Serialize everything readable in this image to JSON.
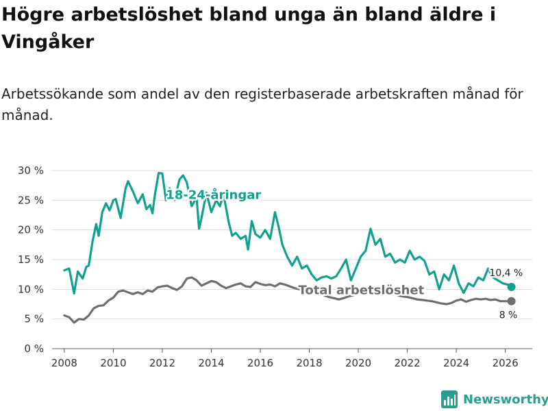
{
  "header": {
    "title": "Högre arbetslöshet bland unga än bland äldre i Vingåker",
    "subtitle": "Arbetssökande som andel av den registerbaserade arbetskraften månad för månad."
  },
  "brand": {
    "name": "Newsworthy",
    "icon": "newsworthy-logo-icon"
  },
  "colors": {
    "youth": "#12a08f",
    "total": "#6e6e6e",
    "grid": "#d9d9d9",
    "axis": "#555555"
  },
  "chart_data": {
    "type": "line",
    "title": "Högre arbetslöshet bland unga än bland äldre i Vingåker",
    "subtitle": "Arbetssökande som andel av den registerbaserade arbetskraften månad för månad.",
    "xlabel": "",
    "ylabel": "",
    "xlim": [
      2007.5,
      2027.1
    ],
    "ylim": [
      0,
      30
    ],
    "grid": true,
    "yticks": [
      0,
      5,
      10,
      15,
      20,
      25,
      30
    ],
    "ytick_labels": [
      "0 %",
      "5 %",
      "10 %",
      "15 %",
      "20 %",
      "25 %",
      "30 %"
    ],
    "xticks": [
      2008,
      2010,
      2012,
      2014,
      2016,
      2018,
      2020,
      2022,
      2024,
      2026
    ],
    "xtick_labels": [
      "2008",
      "2010",
      "2012",
      "2014",
      "2016",
      "2018",
      "2020",
      "2022",
      "2024",
      "2026"
    ],
    "series": [
      {
        "name": "18-24-åringar",
        "label": "18-24-åringar",
        "color": "#12a08f",
        "end_label": "10,4 %",
        "x": [
          2008.0,
          2008.2,
          2008.4,
          2008.55,
          2008.75,
          2008.9,
          2009.0,
          2009.15,
          2009.3,
          2009.4,
          2009.55,
          2009.7,
          2009.85,
          2010.0,
          2010.1,
          2010.3,
          2010.5,
          2010.6,
          2010.8,
          2011.0,
          2011.2,
          2011.35,
          2011.5,
          2011.6,
          2011.7,
          2011.85,
          2012.0,
          2012.15,
          2012.3,
          2012.5,
          2012.7,
          2012.85,
          2013.0,
          2013.2,
          2013.4,
          2013.5,
          2013.6,
          2013.8,
          2014.0,
          2014.2,
          2014.35,
          2014.5,
          2014.7,
          2014.85,
          2015.0,
          2015.2,
          2015.4,
          2015.5,
          2015.65,
          2015.8,
          2016.0,
          2016.2,
          2016.4,
          2016.6,
          2016.75,
          2016.9,
          2017.1,
          2017.3,
          2017.5,
          2017.7,
          2017.9,
          2018.1,
          2018.3,
          2018.5,
          2018.7,
          2018.9,
          2019.1,
          2019.3,
          2019.5,
          2019.7,
          2019.9,
          2020.1,
          2020.3,
          2020.5,
          2020.7,
          2020.9,
          2021.1,
          2021.3,
          2021.5,
          2021.7,
          2021.9,
          2022.1,
          2022.3,
          2022.5,
          2022.7,
          2022.9,
          2023.1,
          2023.3,
          2023.5,
          2023.7,
          2023.9,
          2024.1,
          2024.3,
          2024.5,
          2024.7,
          2024.9,
          2025.1,
          2025.3,
          2025.5,
          2025.7,
          2025.9,
          2026.1,
          2026.25
        ],
        "values": [
          13.2,
          13.5,
          9.3,
          13.0,
          11.8,
          13.8,
          14.0,
          18.0,
          21.0,
          19.0,
          23.0,
          24.5,
          23.3,
          25.0,
          25.2,
          22.0,
          27.0,
          28.2,
          26.5,
          24.5,
          26.0,
          23.5,
          24.2,
          22.8,
          26.0,
          29.6,
          29.5,
          25.0,
          27.0,
          25.0,
          28.5,
          29.2,
          28.0,
          24.0,
          25.5,
          20.2,
          22.0,
          26.3,
          23.0,
          25.0,
          24.0,
          26.0,
          21.5,
          19.0,
          19.5,
          18.5,
          19.0,
          16.7,
          21.5,
          19.3,
          18.7,
          20.0,
          18.5,
          23.0,
          20.5,
          17.5,
          15.5,
          14.0,
          15.5,
          13.5,
          14.0,
          12.5,
          11.5,
          12.0,
          12.2,
          11.8,
          12.2,
          13.5,
          15.0,
          11.5,
          13.5,
          15.5,
          16.5,
          20.2,
          17.5,
          18.5,
          15.5,
          16.0,
          14.5,
          15.0,
          14.5,
          16.5,
          15.0,
          15.5,
          14.8,
          12.5,
          13.0,
          10.0,
          12.5,
          11.5,
          14.0,
          11.0,
          9.4,
          11.0,
          10.5,
          12.0,
          11.5,
          13.5,
          12.0,
          11.5,
          11.0,
          10.8,
          10.4
        ]
      },
      {
        "name": "Total arbetslöshet",
        "label": "Total arbetslöshet",
        "color": "#6e6e6e",
        "end_label": "8 %",
        "x": [
          2008.0,
          2008.2,
          2008.4,
          2008.6,
          2008.8,
          2009.0,
          2009.2,
          2009.4,
          2009.6,
          2009.8,
          2010.0,
          2010.2,
          2010.4,
          2010.6,
          2010.8,
          2011.0,
          2011.2,
          2011.4,
          2011.6,
          2011.8,
          2012.0,
          2012.2,
          2012.4,
          2012.6,
          2012.8,
          2013.0,
          2013.2,
          2013.4,
          2013.6,
          2013.8,
          2014.0,
          2014.2,
          2014.4,
          2014.6,
          2014.8,
          2015.0,
          2015.2,
          2015.4,
          2015.6,
          2015.8,
          2016.0,
          2016.2,
          2016.4,
          2016.6,
          2016.8,
          2017.0,
          2017.2,
          2017.4,
          2017.6,
          2017.8,
          2018.0,
          2018.2,
          2018.4,
          2018.6,
          2018.8,
          2019.0,
          2019.2,
          2019.4,
          2019.6,
          2019.8,
          2020.0,
          2020.2,
          2020.4,
          2020.6,
          2020.8,
          2021.0,
          2021.2,
          2021.4,
          2021.6,
          2021.8,
          2022.0,
          2022.2,
          2022.4,
          2022.6,
          2022.8,
          2023.0,
          2023.2,
          2023.4,
          2023.6,
          2023.8,
          2024.0,
          2024.2,
          2024.4,
          2024.6,
          2024.8,
          2025.0,
          2025.2,
          2025.4,
          2025.6,
          2025.8,
          2026.0,
          2026.25
        ],
        "values": [
          5.6,
          5.3,
          4.4,
          5.0,
          4.9,
          5.6,
          6.8,
          7.2,
          7.3,
          8.1,
          8.6,
          9.6,
          9.8,
          9.5,
          9.2,
          9.5,
          9.2,
          9.8,
          9.6,
          10.3,
          10.5,
          10.6,
          10.2,
          9.9,
          10.5,
          11.8,
          12.0,
          11.5,
          10.6,
          11.0,
          11.4,
          11.2,
          10.6,
          10.2,
          10.5,
          10.8,
          11.0,
          10.5,
          10.4,
          11.2,
          10.9,
          10.7,
          10.8,
          10.5,
          11.0,
          10.8,
          10.5,
          10.2,
          10.0,
          9.8,
          9.7,
          9.5,
          9.2,
          9.0,
          8.7,
          8.5,
          8.3,
          8.5,
          8.8,
          9.0,
          9.3,
          9.5,
          9.8,
          10.0,
          9.8,
          9.5,
          9.3,
          9.2,
          9.0,
          8.8,
          8.7,
          8.5,
          8.3,
          8.2,
          8.1,
          8.0,
          7.8,
          7.6,
          7.5,
          7.7,
          8.1,
          8.3,
          7.9,
          8.2,
          8.4,
          8.3,
          8.4,
          8.2,
          8.3,
          8.0,
          8.0,
          8.0
        ]
      }
    ]
  }
}
